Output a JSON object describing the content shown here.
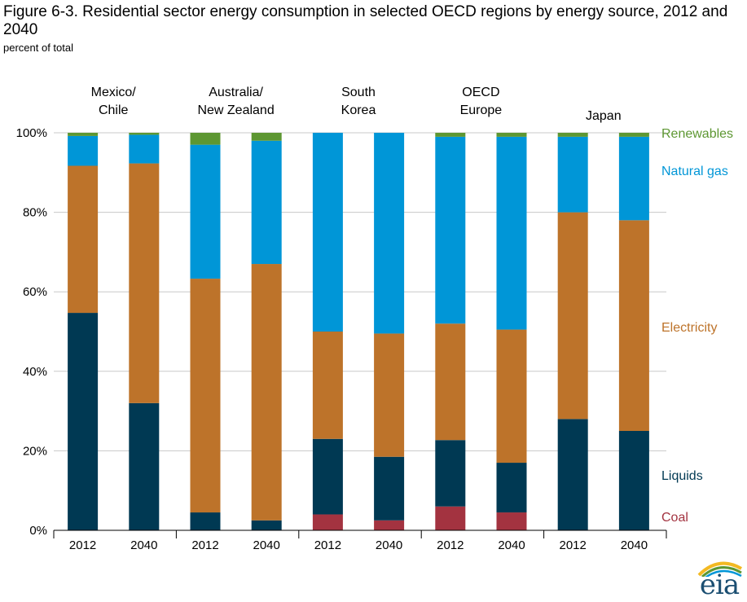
{
  "title": "Figure 6-3. Residential sector energy consumption in selected OECD regions by energy source, 2012 and 2040",
  "subtitle": "percent of total",
  "logo_text": "eia",
  "chart_data": {
    "type": "bar",
    "stacked": true,
    "ylim": [
      0,
      100
    ],
    "yticks": [
      "0%",
      "20%",
      "40%",
      "60%",
      "80%",
      "100%"
    ],
    "grid": true,
    "legend_placement": "right",
    "groups": [
      {
        "label": [
          "Mexico/",
          "Chile"
        ],
        "years": [
          "2012",
          "2040"
        ]
      },
      {
        "label": [
          "Australia/",
          "New Zealand"
        ],
        "years": [
          "2012",
          "2040"
        ]
      },
      {
        "label": [
          "South",
          "Korea"
        ],
        "years": [
          "2012",
          "2040"
        ]
      },
      {
        "label": [
          "OECD",
          "Europe"
        ],
        "years": [
          "2012",
          "2040"
        ]
      },
      {
        "label": [
          "Japan"
        ],
        "years": [
          "2012",
          "2040"
        ]
      }
    ],
    "categories": [
      "2012",
      "2040",
      "2012",
      "2040",
      "2012",
      "2040",
      "2012",
      "2040",
      "2012",
      "2040"
    ],
    "series": [
      {
        "name": "Coal",
        "color": "#a33340",
        "values": [
          0,
          0,
          0,
          0,
          4,
          2.5,
          6,
          4.5,
          0,
          0
        ]
      },
      {
        "name": "Liquids",
        "color": "#003953",
        "values": [
          54.7,
          32,
          4.5,
          2.5,
          19,
          16,
          16.7,
          12.5,
          28,
          25
        ]
      },
      {
        "name": "Electricity",
        "color": "#bd732a",
        "values": [
          37,
          60.3,
          58.8,
          64.5,
          27,
          31,
          29.3,
          33.5,
          52,
          53
        ]
      },
      {
        "name": "Natural gas",
        "color": "#0096d7",
        "values": [
          7.5,
          7.2,
          33.7,
          31,
          50,
          50.5,
          47,
          48.5,
          19,
          21
        ]
      },
      {
        "name": "Renewables",
        "color": "#5d9732",
        "values": [
          0.8,
          0.5,
          3,
          2,
          0,
          0,
          1,
          1,
          1,
          1
        ]
      }
    ]
  }
}
